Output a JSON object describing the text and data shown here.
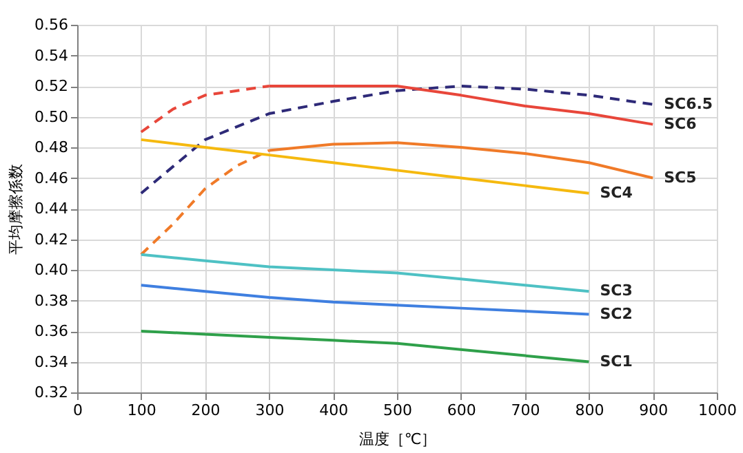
{
  "chart_data": {
    "type": "line",
    "xlabel": "温度［℃］",
    "ylabel": "平均摩擦係数",
    "xlim": [
      0,
      1000
    ],
    "xticks": [
      0,
      100,
      200,
      300,
      400,
      500,
      600,
      700,
      800,
      900,
      1000
    ],
    "ylim": [
      0.32,
      0.56
    ],
    "yticks": [
      0.32,
      0.34,
      0.36,
      0.38,
      {
        "value": 0.4,
        "label": "0.40"
      },
      0.42,
      0.44,
      0.46,
      0.48,
      {
        "value": 0.5,
        "label": "0.50"
      },
      0.52,
      0.54,
      0.56
    ],
    "grid": true,
    "legend": false,
    "marker": "none",
    "series": [
      {
        "name": "SC6.5",
        "color": "#2e2a78",
        "line_style": "dashed",
        "x": [
          100,
          200,
          300,
          400,
          500,
          600,
          700,
          800,
          900
        ],
        "values": [
          0.45,
          0.485,
          0.502,
          0.51,
          0.517,
          0.52,
          0.518,
          0.514,
          0.508
        ]
      },
      {
        "color": "#e8463a",
        "line_style": "dashed",
        "x": [
          100,
          150,
          200,
          300
        ],
        "values": [
          0.49,
          0.505,
          0.514,
          0.52
        ]
      },
      {
        "name": "SC6",
        "color": "#e8463a",
        "line_style": "solid",
        "x": [
          300,
          500,
          600,
          700,
          800,
          900
        ],
        "values": [
          0.52,
          0.52,
          0.514,
          0.507,
          0.502,
          0.495
        ]
      },
      {
        "color": "#f07a28",
        "line_style": "dashed",
        "x": [
          100,
          150,
          200,
          250,
          300
        ],
        "values": [
          0.41,
          0.43,
          0.453,
          0.468,
          0.478
        ]
      },
      {
        "name": "SC5",
        "color": "#f07a28",
        "line_style": "solid",
        "x": [
          300,
          400,
          500,
          600,
          700,
          800,
          900
        ],
        "values": [
          0.478,
          0.482,
          0.483,
          0.48,
          0.476,
          0.47,
          0.46
        ]
      },
      {
        "name": "SC4",
        "color": "#f5b90f",
        "line_style": "solid",
        "x": [
          100,
          200,
          300,
          400,
          500,
          600,
          700,
          800
        ],
        "values": [
          0.485,
          0.48,
          0.475,
          0.47,
          0.465,
          0.46,
          0.455,
          0.45
        ]
      },
      {
        "name": "SC3",
        "color": "#4ec1c4",
        "line_style": "solid",
        "x": [
          100,
          200,
          300,
          400,
          500,
          600,
          700,
          800
        ],
        "values": [
          0.41,
          0.406,
          0.402,
          0.4,
          0.398,
          0.394,
          0.39,
          0.386
        ]
      },
      {
        "name": "SC2",
        "color": "#3f7fe0",
        "line_style": "solid",
        "x": [
          100,
          200,
          300,
          400,
          500,
          600,
          700,
          800
        ],
        "values": [
          0.39,
          0.386,
          0.382,
          0.379,
          0.377,
          0.375,
          0.373,
          0.371
        ]
      },
      {
        "name": "SC1",
        "color": "#2fa04a",
        "line_style": "solid",
        "x": [
          100,
          200,
          300,
          400,
          500,
          600,
          700,
          800
        ],
        "values": [
          0.36,
          0.358,
          0.356,
          0.354,
          0.352,
          0.348,
          0.344,
          0.34
        ]
      }
    ]
  }
}
